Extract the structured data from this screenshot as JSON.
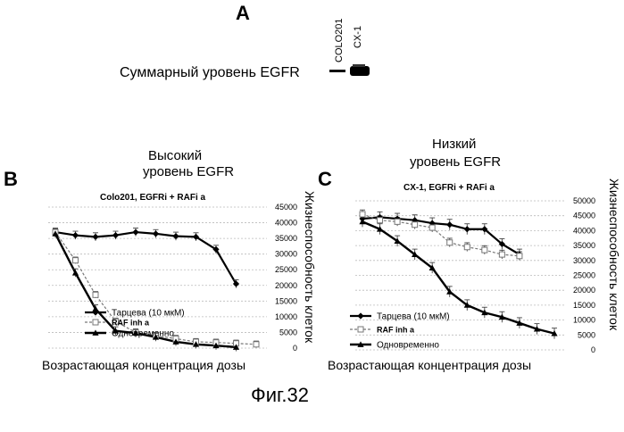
{
  "panel_a": {
    "letter": "A",
    "lane_labels": [
      "COLO201",
      "CX-1"
    ],
    "row_label": "Суммарный уровень EGFR"
  },
  "panel_b": {
    "letter": "B",
    "heading_line1": "Высокий",
    "heading_line2": "уровень EGFR"
  },
  "panel_c": {
    "letter": "C",
    "heading_line1": "Низкий",
    "heading_line2": "уровень EGFR"
  },
  "figure_caption": "Фиг.32",
  "chart_data": [
    {
      "type": "line",
      "title": "Colo201, EGFRi + RAFi a",
      "xlabel": "Возрастающая концентрация дозы",
      "ylabel": "Жизнеспособность клеток",
      "ylim": [
        0,
        45000
      ],
      "yticks": [
        "45000",
        "40000",
        "35000",
        "30000",
        "25000",
        "20000",
        "15000",
        "10000",
        "5000",
        "0"
      ],
      "x": [
        1,
        2,
        3,
        4,
        5,
        6,
        7,
        8,
        9,
        10,
        11
      ],
      "grid": true,
      "legend_position": "bottom-left",
      "series": [
        {
          "name": "Тарцева (10 мкМ)",
          "marker": "diamond",
          "values": [
            37000,
            36000,
            35500,
            36000,
            37000,
            36500,
            35700,
            35500,
            31500,
            20500,
            null
          ]
        },
        {
          "name": "RAF inh a",
          "marker": "square",
          "values": [
            37000,
            28000,
            17000,
            8500,
            5000,
            4000,
            3000,
            2000,
            1800,
            1500,
            1200
          ]
        },
        {
          "name": "Одновременно",
          "marker": "triangle",
          "values": [
            36500,
            24000,
            12500,
            5500,
            4800,
            3500,
            2000,
            1200,
            800,
            300,
            null
          ]
        }
      ]
    },
    {
      "type": "line",
      "title": "CX-1, EGFRi + RAFi a",
      "xlabel": "Возрастающая концентрация дозы",
      "ylabel": "Жизнеспособность клеток",
      "ylim": [
        0,
        50000
      ],
      "yticks": [
        "50000",
        "45000",
        "40000",
        "35000",
        "30000",
        "25000",
        "20000",
        "15000",
        "10000",
        "5000",
        "0"
      ],
      "x": [
        1,
        2,
        3,
        4,
        5,
        6,
        7,
        8,
        9,
        10,
        11,
        12
      ],
      "grid": true,
      "legend_position": "bottom-left",
      "series": [
        {
          "name": "Тарцева (10 мкМ)",
          "marker": "diamond",
          "values": [
            44000,
            44500,
            44000,
            43500,
            42500,
            42000,
            40500,
            40500,
            35500,
            32000,
            null,
            null
          ]
        },
        {
          "name": "RAF inh a",
          "marker": "square",
          "values": [
            45500,
            43500,
            43000,
            42000,
            41000,
            36000,
            34500,
            33500,
            32000,
            31500,
            null,
            null
          ]
        },
        {
          "name": "Одновременно",
          "marker": "triangle",
          "values": [
            43000,
            40500,
            36500,
            32000,
            27500,
            19500,
            15000,
            12500,
            11000,
            9000,
            7000,
            5500
          ]
        }
      ]
    }
  ]
}
